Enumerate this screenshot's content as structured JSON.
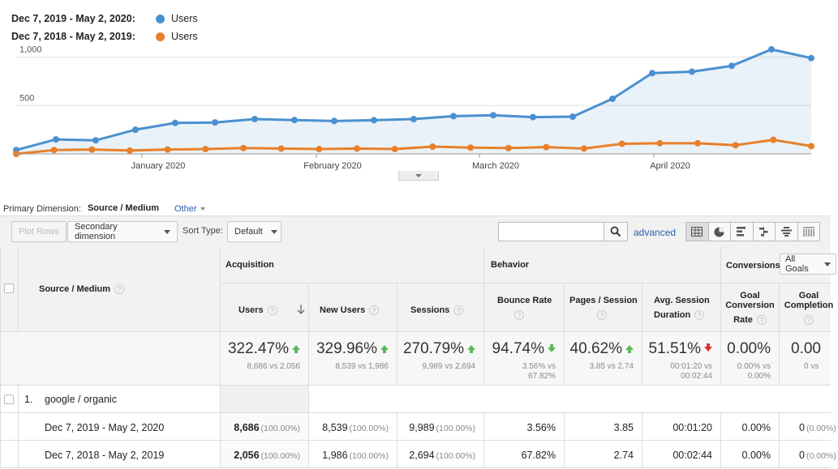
{
  "legend": [
    {
      "range": "Dec 7, 2019 - May 2, 2020:",
      "metric": "Users",
      "color": "#4a90d0"
    },
    {
      "range": "Dec 7, 2018 - May 2, 2019:",
      "metric": "Users",
      "color": "#e8802a"
    }
  ],
  "chart_data": {
    "type": "line",
    "y_ticks": [
      "1,000",
      "500"
    ],
    "x_labels": [
      "January 2020",
      "February 2020",
      "March 2020",
      "April 2020"
    ],
    "ylim": [
      0,
      1130
    ],
    "series": [
      {
        "name": "Users",
        "color": "#4a90d0",
        "values": [
          40,
          150,
          140,
          250,
          320,
          325,
          360,
          350,
          340,
          348,
          360,
          390,
          400,
          380,
          385,
          570,
          835,
          850,
          910,
          1080,
          990
        ]
      },
      {
        "name": "Users",
        "color": "#e8802a",
        "values": [
          0,
          40,
          45,
          35,
          45,
          50,
          60,
          55,
          50,
          55,
          50,
          75,
          65,
          60,
          70,
          55,
          105,
          110,
          110,
          90,
          145,
          80
        ]
      }
    ]
  },
  "primary_dimension": {
    "label": "Primary Dimension:",
    "value": "Source / Medium",
    "other": "Other"
  },
  "toolbar": {
    "plot_rows": "Plot Rows",
    "secondary": "Secondary dimension",
    "sort_label": "Sort Type:",
    "sort_value": "Default",
    "search_value": "",
    "advanced": "advanced"
  },
  "table": {
    "dim_header": "Source / Medium",
    "group_acq": "Acquisition",
    "group_beh": "Behavior",
    "group_conv": "Conversions",
    "goals_select": "All Goals",
    "cols": {
      "users": "Users",
      "new_users": "New Users",
      "sessions": "Sessions",
      "bounce": "Bounce Rate",
      "pps": "Pages / Session",
      "avg1": "Avg. Session",
      "avg2": "Duration",
      "gcr1": "Goal",
      "gcr2": "Conversion",
      "gcr3": "Rate",
      "gc1": "Goal",
      "gc2": "Completion"
    },
    "totals": {
      "users": {
        "main": "322.47%",
        "sub": "8,686 vs 2,056"
      },
      "new_users": {
        "main": "329.96%",
        "sub": "8,539 vs 1,986"
      },
      "sessions": {
        "main": "270.79%",
        "sub": "9,989 vs 2,694"
      },
      "bounce": {
        "main": "94.74%",
        "sub1": "3.56% vs",
        "sub2": "67.82%"
      },
      "pps": {
        "main": "40.62%",
        "sub": "3.85 vs 2.74"
      },
      "avg": {
        "main": "51.51%",
        "sub1": "00:01:20 vs",
        "sub2": "00:02:44"
      },
      "gcr": {
        "main": "0.00%",
        "sub1": "0.00% vs",
        "sub2": "0.00%"
      },
      "gc": {
        "main": "0.00",
        "sub": "0 vs"
      }
    },
    "group_row": {
      "index": "1.",
      "label": "google / organic"
    },
    "rows": [
      {
        "label": "Dec 7, 2019 - May 2, 2020",
        "users": "8,686",
        "users_pct": "(100.00%)",
        "new_users": "8,539",
        "new_users_pct": "(100.00%)",
        "sessions": "9,989",
        "sessions_pct": "(100.00%)",
        "bounce": "3.56%",
        "pps": "3.85",
        "avg": "00:01:20",
        "gcr": "0.00%",
        "gc": "0",
        "gc_pct": "(0.00%)"
      },
      {
        "label": "Dec 7, 2018 - May 2, 2019",
        "users": "2,056",
        "users_pct": "(100.00%)",
        "new_users": "1,986",
        "new_users_pct": "(100.00%)",
        "sessions": "2,694",
        "sessions_pct": "(100.00%)",
        "bounce": "67.82%",
        "pps": "2.74",
        "avg": "00:02:44",
        "gcr": "0.00%",
        "gc": "0",
        "gc_pct": "(0.00%)"
      }
    ]
  }
}
